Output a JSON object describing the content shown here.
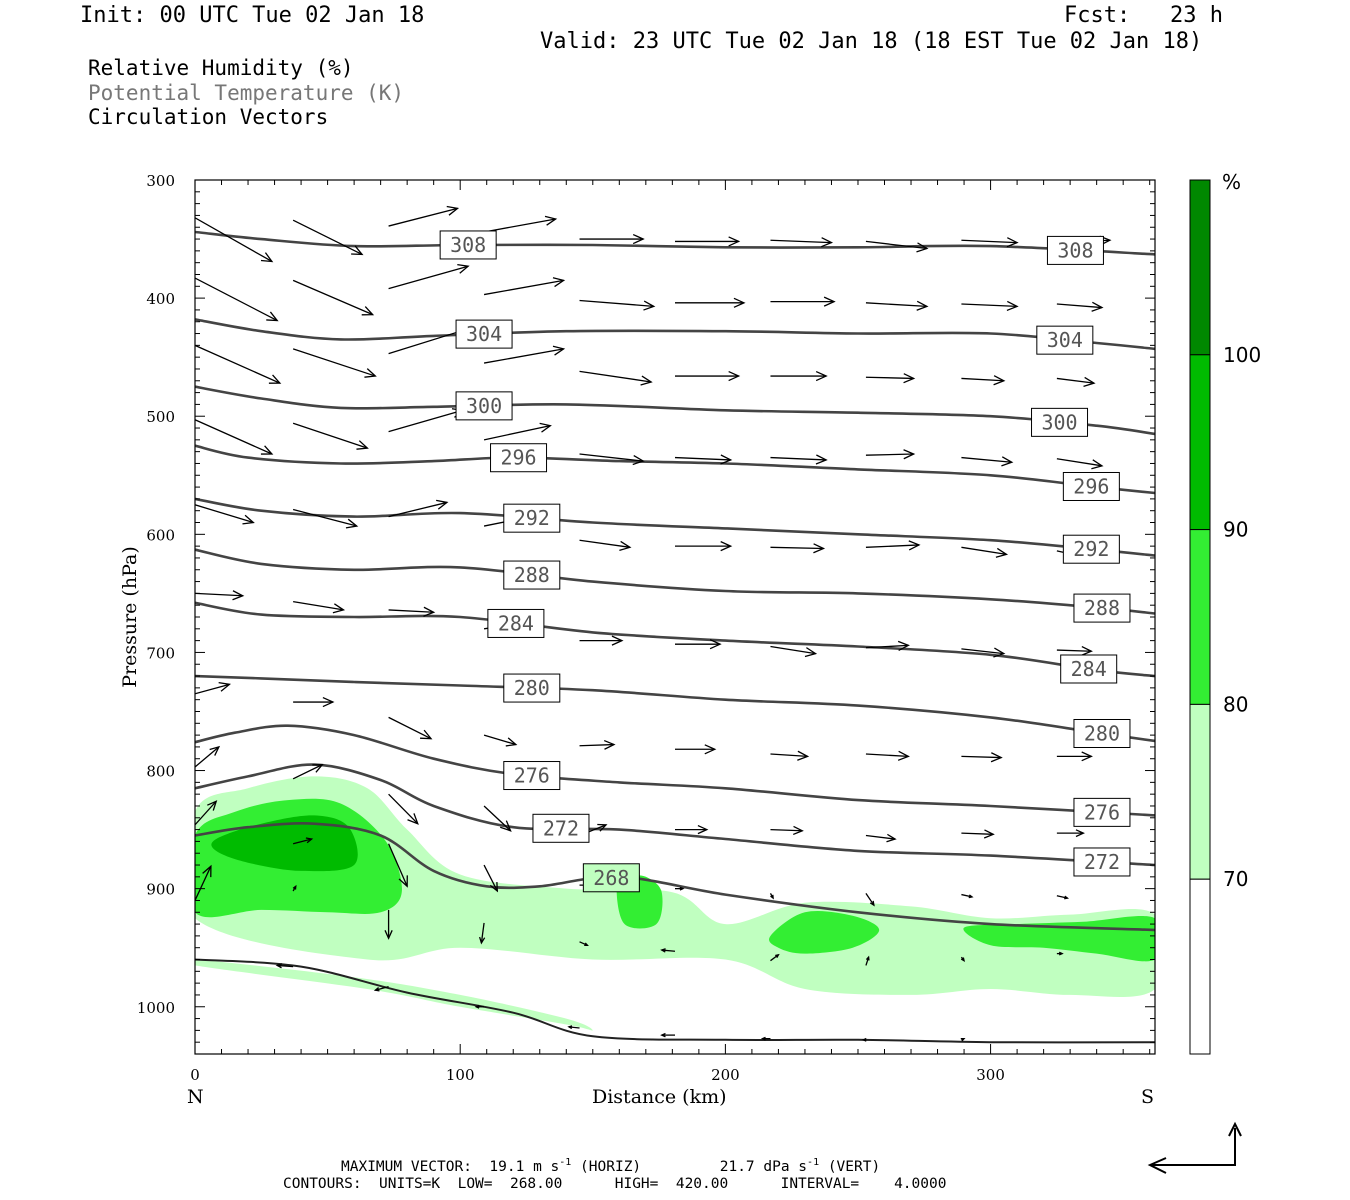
{
  "header": {
    "init": "Init: 00 UTC Tue 02 Jan 18",
    "fcst": "Fcst:   23 h",
    "valid": "Valid: 23 UTC Tue 02 Jan 18 (18 EST Tue 02 Jan 18)"
  },
  "legend": {
    "rh": "Relative Humidity (%)",
    "theta": "Potential Temperature (K)",
    "vectors": "Circulation Vectors"
  },
  "footer": {
    "maxvec_prefix": "MAXIMUM VECTOR:",
    "maxvec_horiz_value": "19.1 m s",
    "maxvec_horiz_exp": "-1",
    "maxvec_horiz_tag": "(HORIZ)",
    "maxvec_vert_value": "21.7 dPa s",
    "maxvec_vert_exp": "-1",
    "maxvec_vert_tag": "(VERT)",
    "contours": "CONTOURS:  UNITS=K  LOW=  268.00      HIGH=  420.00      INTERVAL=    4.0000"
  },
  "colors": {
    "rh70": "#c0ffc0",
    "rh80": "#33ee33",
    "rh90": "#00bb00",
    "rh100": "#008800",
    "contour": "#444444",
    "vector": "#000000"
  },
  "chart_data": {
    "type": "contour",
    "xlabel": "Distance (km)",
    "ylabel": "Pressure (hPa)",
    "xlim": [
      0,
      362
    ],
    "ylim": [
      1040,
      300
    ],
    "x_ticks": [
      "0",
      "100",
      "200",
      "300"
    ],
    "y_ticks": [
      "300",
      "400",
      "500",
      "600",
      "700",
      "800",
      "900",
      "1000"
    ],
    "x_ends": [
      "N",
      "S"
    ],
    "colorbar": {
      "unit": "%",
      "levels": [
        "70",
        "80",
        "90",
        "100"
      ]
    },
    "isentropes": [
      {
        "theta": 308,
        "x": [
          0,
          25,
          60,
          100,
          150,
          200,
          250,
          300,
          362
        ],
        "p": [
          344,
          350,
          356,
          355,
          355,
          357,
          357,
          356,
          363
        ]
      },
      {
        "theta": 304,
        "x": [
          0,
          25,
          55,
          90,
          140,
          200,
          250,
          300,
          340,
          362
        ],
        "p": [
          418,
          428,
          435,
          432,
          428,
          428,
          430,
          430,
          438,
          443
        ]
      },
      {
        "theta": 300,
        "x": [
          0,
          25,
          55,
          90,
          140,
          200,
          250,
          300,
          340,
          362
        ],
        "p": [
          475,
          485,
          493,
          492,
          490,
          495,
          497,
          500,
          508,
          515
        ]
      },
      {
        "theta": 296,
        "x": [
          0,
          20,
          55,
          90,
          120,
          160,
          200,
          250,
          300,
          340,
          362
        ],
        "p": [
          525,
          535,
          540,
          538,
          535,
          538,
          540,
          545,
          550,
          560,
          565
        ]
      },
      {
        "theta": 292,
        "x": [
          0,
          25,
          60,
          100,
          150,
          200,
          250,
          300,
          340,
          362
        ],
        "p": [
          570,
          580,
          585,
          582,
          590,
          595,
          600,
          605,
          613,
          618
        ]
      },
      {
        "theta": 288,
        "x": [
          0,
          25,
          60,
          100,
          150,
          200,
          250,
          300,
          340,
          362
        ],
        "p": [
          613,
          625,
          630,
          628,
          640,
          648,
          650,
          655,
          662,
          667
        ]
      },
      {
        "theta": 284,
        "x": [
          0,
          25,
          60,
          100,
          150,
          200,
          250,
          300,
          340,
          362
        ],
        "p": [
          658,
          668,
          670,
          670,
          683,
          690,
          695,
          702,
          715,
          720
        ]
      },
      {
        "theta": 280,
        "x": [
          0,
          25,
          60,
          100,
          150,
          200,
          250,
          300,
          340,
          362
        ],
        "p": [
          720,
          722,
          725,
          728,
          732,
          740,
          745,
          755,
          768,
          775
        ]
      },
      {
        "theta": 276,
        "x": [
          0,
          15,
          35,
          60,
          90,
          120,
          160,
          200,
          250,
          300,
          362
        ],
        "p": [
          776,
          768,
          762,
          770,
          790,
          803,
          810,
          815,
          825,
          830,
          838
        ]
      },
      {
        "theta": 272,
        "x": [
          0,
          20,
          45,
          70,
          90,
          120,
          160,
          200,
          250,
          300,
          362
        ],
        "p": [
          815,
          805,
          795,
          808,
          830,
          848,
          850,
          858,
          868,
          872,
          880
        ]
      },
      {
        "theta": 268,
        "x": [
          0,
          20,
          45,
          70,
          90,
          110,
          130,
          160,
          200,
          250,
          300,
          362
        ],
        "p": [
          855,
          848,
          845,
          855,
          885,
          898,
          898,
          890,
          905,
          920,
          930,
          935
        ]
      }
    ],
    "isentrope_labels": [
      {
        "theta": 308,
        "x": [
          103,
          332
        ]
      },
      {
        "theta": 304,
        "x": [
          109,
          328
        ]
      },
      {
        "theta": 300,
        "x": [
          109,
          326
        ]
      },
      {
        "theta": 296,
        "x": [
          122,
          338
        ]
      },
      {
        "theta": 292,
        "x": [
          127,
          338
        ]
      },
      {
        "theta": 288,
        "x": [
          127,
          342
        ]
      },
      {
        "theta": 284,
        "x": [
          121,
          337
        ]
      },
      {
        "theta": 280,
        "x": [
          127,
          342
        ]
      },
      {
        "theta": 276,
        "x": [
          127,
          342
        ]
      },
      {
        "theta": 272,
        "x": [
          138,
          342
        ]
      },
      {
        "theta": 268,
        "x": [
          157
        ]
      }
    ],
    "rh_regions": [
      {
        "min_rh": 70,
        "x": [
          0,
          20,
          45,
          65,
          80,
          100,
          140,
          180,
          200,
          230,
          270,
          300,
          330,
          362,
          362,
          330,
          300,
          270,
          230,
          200,
          150,
          100,
          65,
          0
        ],
        "p": [
          835,
          815,
          805,
          815,
          850,
          888,
          900,
          903,
          930,
          912,
          915,
          925,
          922,
          922,
          985,
          990,
          985,
          990,
          985,
          960,
          960,
          950,
          960,
          925
        ]
      },
      {
        "min_rh": 70,
        "x": [
          0,
          60,
          100,
          140,
          150,
          140,
          100,
          65,
          0
        ],
        "p": [
          960,
          975,
          990,
          1010,
          1020,
          1015,
          1000,
          985,
          965
        ]
      },
      {
        "min_rh": 80,
        "x": [
          0,
          15,
          35,
          55,
          72,
          78,
          70,
          50,
          25,
          0
        ],
        "p": [
          855,
          835,
          825,
          828,
          860,
          902,
          920,
          920,
          918,
          920
        ]
      },
      {
        "min_rh": 80,
        "x": [
          159,
          163,
          170,
          176,
          174,
          162
        ],
        "p": [
          898,
          890,
          890,
          903,
          930,
          930
        ]
      },
      {
        "min_rh": 80,
        "x": [
          217,
          230,
          248,
          258,
          248,
          230,
          220
        ],
        "p": [
          940,
          920,
          923,
          935,
          950,
          955,
          950
        ]
      },
      {
        "min_rh": 80,
        "x": [
          290,
          310,
          335,
          362,
          362,
          340,
          320,
          300
        ],
        "p": [
          933,
          930,
          928,
          925,
          960,
          955,
          950,
          948
        ]
      },
      {
        "min_rh": 90,
        "x": [
          8,
          25,
          45,
          58,
          60,
          40,
          20,
          8
        ],
        "p": [
          858,
          845,
          838,
          848,
          880,
          885,
          878,
          868
        ]
      }
    ],
    "vectors": [
      {
        "x0": 0,
        "p0": 332,
        "x1": 29,
        "p1": 369
      },
      {
        "x0": 37,
        "p0": 334,
        "x1": 63,
        "p1": 363
      },
      {
        "x0": 73,
        "p0": 339,
        "x1": 99,
        "p1": 324
      },
      {
        "x0": 109,
        "p0": 344,
        "x1": 136,
        "p1": 333
      },
      {
        "x0": 145,
        "p0": 350,
        "x1": 169,
        "p1": 350
      },
      {
        "x0": 181,
        "p0": 352,
        "x1": 205,
        "p1": 352
      },
      {
        "x0": 217,
        "p0": 351,
        "x1": 240,
        "p1": 353
      },
      {
        "x0": 253,
        "p0": 352,
        "x1": 276,
        "p1": 358
      },
      {
        "x0": 289,
        "p0": 351,
        "x1": 310,
        "p1": 353
      },
      {
        "x0": 325,
        "p0": 353,
        "x1": 345,
        "p1": 351
      },
      {
        "x0": 0,
        "p0": 383,
        "x1": 31,
        "p1": 419
      },
      {
        "x0": 37,
        "p0": 385,
        "x1": 67,
        "p1": 414
      },
      {
        "x0": 73,
        "p0": 392,
        "x1": 103,
        "p1": 373
      },
      {
        "x0": 109,
        "p0": 397,
        "x1": 139,
        "p1": 385
      },
      {
        "x0": 145,
        "p0": 402,
        "x1": 173,
        "p1": 407
      },
      {
        "x0": 181,
        "p0": 404,
        "x1": 207,
        "p1": 404
      },
      {
        "x0": 217,
        "p0": 403,
        "x1": 241,
        "p1": 403
      },
      {
        "x0": 253,
        "p0": 404,
        "x1": 276,
        "p1": 407
      },
      {
        "x0": 289,
        "p0": 405,
        "x1": 310,
        "p1": 407
      },
      {
        "x0": 325,
        "p0": 405,
        "x1": 342,
        "p1": 408
      },
      {
        "x0": 0,
        "p0": 440,
        "x1": 32,
        "p1": 472
      },
      {
        "x0": 37,
        "p0": 443,
        "x1": 68,
        "p1": 466
      },
      {
        "x0": 73,
        "p0": 447,
        "x1": 103,
        "p1": 426
      },
      {
        "x0": 109,
        "p0": 455,
        "x1": 139,
        "p1": 443
      },
      {
        "x0": 145,
        "p0": 462,
        "x1": 172,
        "p1": 471
      },
      {
        "x0": 181,
        "p0": 466,
        "x1": 205,
        "p1": 466
      },
      {
        "x0": 217,
        "p0": 466,
        "x1": 238,
        "p1": 466
      },
      {
        "x0": 253,
        "p0": 467,
        "x1": 271,
        "p1": 468
      },
      {
        "x0": 289,
        "p0": 468,
        "x1": 305,
        "p1": 470
      },
      {
        "x0": 325,
        "p0": 468,
        "x1": 339,
        "p1": 472
      },
      {
        "x0": 0,
        "p0": 503,
        "x1": 29,
        "p1": 532
      },
      {
        "x0": 37,
        "p0": 506,
        "x1": 65,
        "p1": 527
      },
      {
        "x0": 73,
        "p0": 513,
        "x1": 101,
        "p1": 495
      },
      {
        "x0": 109,
        "p0": 520,
        "x1": 134,
        "p1": 508
      },
      {
        "x0": 145,
        "p0": 532,
        "x1": 169,
        "p1": 538
      },
      {
        "x0": 181,
        "p0": 535,
        "x1": 202,
        "p1": 537
      },
      {
        "x0": 217,
        "p0": 535,
        "x1": 238,
        "p1": 537
      },
      {
        "x0": 253,
        "p0": 533,
        "x1": 271,
        "p1": 532
      },
      {
        "x0": 289,
        "p0": 535,
        "x1": 308,
        "p1": 539
      },
      {
        "x0": 325,
        "p0": 536,
        "x1": 342,
        "p1": 542
      },
      {
        "x0": 0,
        "p0": 575,
        "x1": 22,
        "p1": 590
      },
      {
        "x0": 37,
        "p0": 579,
        "x1": 61,
        "p1": 593
      },
      {
        "x0": 73,
        "p0": 585,
        "x1": 95,
        "p1": 573
      },
      {
        "x0": 109,
        "p0": 593,
        "x1": 129,
        "p1": 584
      },
      {
        "x0": 145,
        "p0": 605,
        "x1": 164,
        "p1": 611
      },
      {
        "x0": 181,
        "p0": 610,
        "x1": 202,
        "p1": 610
      },
      {
        "x0": 217,
        "p0": 611,
        "x1": 237,
        "p1": 612
      },
      {
        "x0": 253,
        "p0": 611,
        "x1": 273,
        "p1": 609
      },
      {
        "x0": 289,
        "p0": 611,
        "x1": 306,
        "p1": 617
      },
      {
        "x0": 325,
        "p0": 614,
        "x1": 339,
        "p1": 621
      },
      {
        "x0": 0,
        "p0": 650,
        "x1": 18,
        "p1": 652
      },
      {
        "x0": 37,
        "p0": 657,
        "x1": 56,
        "p1": 664
      },
      {
        "x0": 73,
        "p0": 664,
        "x1": 90,
        "p1": 666
      },
      {
        "x0": 109,
        "p0": 680,
        "x1": 124,
        "p1": 675
      },
      {
        "x0": 145,
        "p0": 690,
        "x1": 161,
        "p1": 690
      },
      {
        "x0": 181,
        "p0": 693,
        "x1": 198,
        "p1": 693
      },
      {
        "x0": 217,
        "p0": 695,
        "x1": 234,
        "p1": 701
      },
      {
        "x0": 253,
        "p0": 696,
        "x1": 269,
        "p1": 694
      },
      {
        "x0": 289,
        "p0": 697,
        "x1": 305,
        "p1": 701
      },
      {
        "x0": 325,
        "p0": 698,
        "x1": 338,
        "p1": 699
      },
      {
        "x0": 0,
        "p0": 735,
        "x1": 13,
        "p1": 727
      },
      {
        "x0": 37,
        "p0": 742,
        "x1": 52,
        "p1": 742
      },
      {
        "x0": 73,
        "p0": 755,
        "x1": 89,
        "p1": 773
      },
      {
        "x0": 109,
        "p0": 770,
        "x1": 121,
        "p1": 778
      },
      {
        "x0": 145,
        "p0": 779,
        "x1": 158,
        "p1": 778
      },
      {
        "x0": 181,
        "p0": 782,
        "x1": 196,
        "p1": 782
      },
      {
        "x0": 217,
        "p0": 786,
        "x1": 231,
        "p1": 788
      },
      {
        "x0": 253,
        "p0": 786,
        "x1": 269,
        "p1": 788
      },
      {
        "x0": 289,
        "p0": 788,
        "x1": 304,
        "p1": 789
      },
      {
        "x0": 325,
        "p0": 788,
        "x1": 338,
        "p1": 788
      },
      {
        "x0": 0,
        "p0": 797,
        "x1": 9,
        "p1": 780
      },
      {
        "x0": 37,
        "p0": 807,
        "x1": 48,
        "p1": 795
      },
      {
        "x0": 73,
        "p0": 820,
        "x1": 84,
        "p1": 845
      },
      {
        "x0": 109,
        "p0": 830,
        "x1": 119,
        "p1": 851
      },
      {
        "x0": 145,
        "p0": 855,
        "x1": 155,
        "p1": 846
      },
      {
        "x0": 181,
        "p0": 850,
        "x1": 193,
        "p1": 850
      },
      {
        "x0": 217,
        "p0": 850,
        "x1": 229,
        "p1": 851
      },
      {
        "x0": 253,
        "p0": 855,
        "x1": 264,
        "p1": 858
      },
      {
        "x0": 289,
        "p0": 853,
        "x1": 301,
        "p1": 854
      },
      {
        "x0": 325,
        "p0": 853,
        "x1": 335,
        "p1": 853
      },
      {
        "x0": 0,
        "p0": 846,
        "x1": 8,
        "p1": 826
      },
      {
        "x0": 37,
        "p0": 862,
        "x1": 44,
        "p1": 858
      },
      {
        "x0": 73,
        "p0": 862,
        "x1": 80,
        "p1": 898
      },
      {
        "x0": 109,
        "p0": 880,
        "x1": 114,
        "p1": 902
      },
      {
        "x0": 145,
        "p0": 897,
        "x1": 153,
        "p1": 897
      },
      {
        "x0": 181,
        "p0": 900,
        "x1": 184,
        "p1": 900
      },
      {
        "x0": 217,
        "p0": 904,
        "x1": 218,
        "p1": 908
      },
      {
        "x0": 253,
        "p0": 904,
        "x1": 256,
        "p1": 914
      },
      {
        "x0": 289,
        "p0": 905,
        "x1": 293,
        "p1": 907
      },
      {
        "x0": 325,
        "p0": 906,
        "x1": 329,
        "p1": 908
      },
      {
        "x0": 0,
        "p0": 910,
        "x1": 6,
        "p1": 881
      },
      {
        "x0": 37,
        "p0": 902,
        "x1": 38,
        "p1": 898
      },
      {
        "x0": 73,
        "p0": 918,
        "x1": 73,
        "p1": 942
      },
      {
        "x0": 109,
        "p0": 929,
        "x1": 108,
        "p1": 946
      },
      {
        "x0": 145,
        "p0": 945,
        "x1": 148,
        "p1": 948
      },
      {
        "x0": 181,
        "p0": 953,
        "x1": 176,
        "p1": 952
      },
      {
        "x0": 217,
        "p0": 961,
        "x1": 220,
        "p1": 956
      },
      {
        "x0": 253,
        "p0": 965,
        "x1": 254,
        "p1": 958
      },
      {
        "x0": 289,
        "p0": 958,
        "x1": 290,
        "p1": 961
      },
      {
        "x0": 325,
        "p0": 955,
        "x1": 327,
        "p1": 955
      },
      {
        "x0": 37,
        "p0": 966,
        "x1": 31,
        "p1": 965
      },
      {
        "x0": 73,
        "p0": 983,
        "x1": 68,
        "p1": 986
      },
      {
        "x0": 109,
        "p0": 1000,
        "x1": 106,
        "p1": 1000
      },
      {
        "x0": 145,
        "p0": 1018,
        "x1": 141,
        "p1": 1017
      },
      {
        "x0": 181,
        "p0": 1024,
        "x1": 176,
        "p1": 1024
      },
      {
        "x0": 217,
        "p0": 1027,
        "x1": 214,
        "p1": 1027
      },
      {
        "x0": 253,
        "p0": 1028,
        "x1": 252,
        "p1": 1028
      },
      {
        "x0": 289,
        "p0": 1028,
        "x1": 290,
        "p1": 1027
      },
      {
        "x0": 325,
        "p0": 1027,
        "x1": 325,
        "p1": 1027
      }
    ],
    "surface": {
      "x": [
        0,
        40,
        80,
        120,
        150,
        200,
        250,
        300,
        362
      ],
      "p": [
        960,
        966,
        988,
        1005,
        1025,
        1028,
        1028,
        1030,
        1030
      ]
    }
  }
}
